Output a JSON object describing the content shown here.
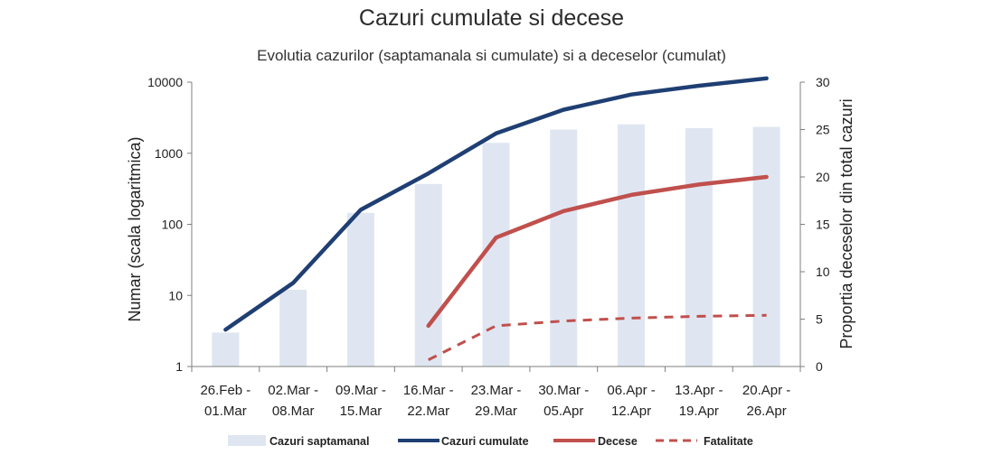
{
  "chart_data": {
    "type": "bar",
    "title": "Cazuri cumulate si decese",
    "subtitle": "Evolutia cazurilor (saptamanala si cumulate) si a deceselor (cumulat)",
    "categories": [
      [
        "26.Feb -",
        "01.Mar"
      ],
      [
        "02.Mar -",
        "08.Mar"
      ],
      [
        "09.Mar -",
        "15.Mar"
      ],
      [
        "16.Mar -",
        "22.Mar"
      ],
      [
        "23.Mar -",
        "29.Mar"
      ],
      [
        "30.Mar -",
        "05.Apr"
      ],
      [
        "06.Apr -",
        "12.Apr"
      ],
      [
        "13.Apr -",
        "19.Apr"
      ],
      [
        "20.Apr -",
        "26.Apr"
      ]
    ],
    "y_left": {
      "label": "Numar (scala logaritmica)",
      "scale": "log",
      "range": [
        1,
        10000
      ],
      "ticks": [
        "1",
        "10",
        "100",
        "1000",
        "10000"
      ]
    },
    "y_right": {
      "label": "Proportia deceselor din total cazuri",
      "range": [
        0,
        30
      ],
      "ticks": [
        "0",
        "5",
        "10",
        "15",
        "20",
        "25",
        "30"
      ]
    },
    "series": [
      {
        "name": "Cazuri saptamanal",
        "kind": "bar",
        "axis": "left",
        "color": "#dfe6f2",
        "values": [
          3,
          12,
          145,
          370,
          1400,
          2150,
          2550,
          2250,
          2350
        ]
      },
      {
        "name": "Cazuri cumulate",
        "kind": "line",
        "axis": "left",
        "color": "#1f3f73",
        "values": [
          3.3,
          15,
          160,
          520,
          1900,
          4100,
          6700,
          8900,
          11300
        ]
      },
      {
        "name": "Decese",
        "kind": "line",
        "axis": "right",
        "color": "#c0504d",
        "values": [
          null,
          null,
          null,
          4.3,
          13.6,
          16.4,
          18.1,
          19.2,
          20.0
        ]
      },
      {
        "name": "Fatalitate",
        "kind": "dashed-line",
        "axis": "right",
        "color": "#c0504d",
        "values": [
          null,
          null,
          null,
          0.7,
          4.3,
          4.8,
          5.1,
          5.3,
          5.4
        ]
      }
    ],
    "legend": "bottom",
    "grid": false
  }
}
